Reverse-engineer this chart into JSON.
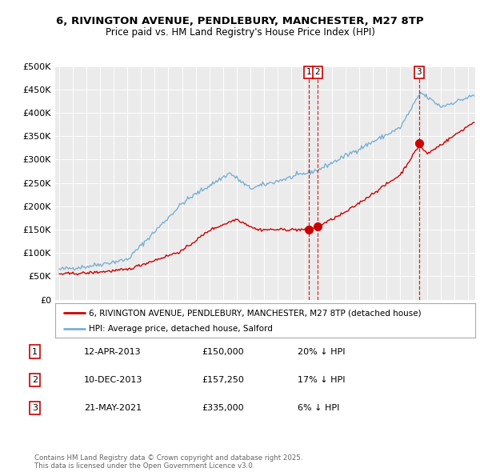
{
  "title_line1": "6, RIVINGTON AVENUE, PENDLEBURY, MANCHESTER, M27 8TP",
  "title_line2": "Price paid vs. HM Land Registry's House Price Index (HPI)",
  "ylim": [
    0,
    500000
  ],
  "yticks": [
    0,
    50000,
    100000,
    150000,
    200000,
    250000,
    300000,
    350000,
    400000,
    450000,
    500000
  ],
  "ytick_labels": [
    "£0",
    "£50K",
    "£100K",
    "£150K",
    "£200K",
    "£250K",
    "£300K",
    "£350K",
    "£400K",
    "£450K",
    "£500K"
  ],
  "background_color": "#ffffff",
  "plot_bg_color": "#ebebeb",
  "legend_label_red": "6, RIVINGTON AVENUE, PENDLEBURY, MANCHESTER, M27 8TP (detached house)",
  "legend_label_blue": "HPI: Average price, detached house, Salford",
  "red_color": "#cc0000",
  "blue_color": "#7ab0d4",
  "dashed_line_color": "#cc0000",
  "sale1_date": 2013.28,
  "sale2_date": 2013.94,
  "sale3_date": 2021.39,
  "sale1_price": 150000,
  "sale2_price": 157250,
  "sale3_price": 335000,
  "footer_text": "Contains HM Land Registry data © Crown copyright and database right 2025.\nThis data is licensed under the Open Government Licence v3.0.",
  "table_data": [
    [
      "1",
      "12-APR-2013",
      "£150,000",
      "20% ↓ HPI"
    ],
    [
      "2",
      "10-DEC-2013",
      "£157,250",
      "17% ↓ HPI"
    ],
    [
      "3",
      "21-MAY-2021",
      "£335,000",
      "6% ↓ HPI"
    ]
  ]
}
